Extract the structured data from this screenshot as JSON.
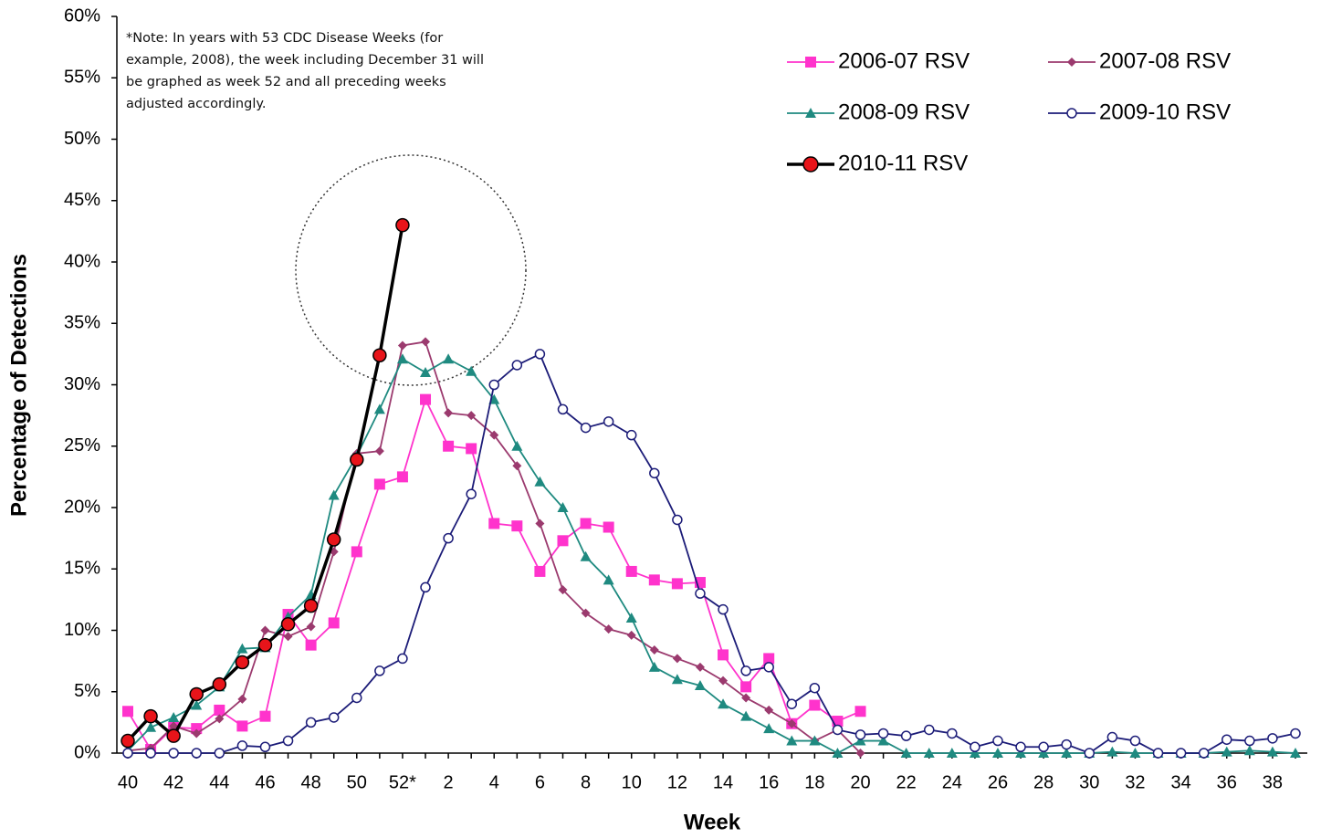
{
  "chart_data": {
    "type": "line",
    "x_label": "Week",
    "y_label": "Percentage of Detections",
    "note": "*Note: In years with 53 CDC Disease Weeks (for example, 2008), the week including December 31 will be graphed as week 52 and all preceding weeks adjusted accordingly.",
    "categories": [
      "40",
      null,
      "42",
      null,
      "44",
      null,
      "46",
      null,
      "48",
      null,
      "50",
      null,
      "52*",
      null,
      "2",
      null,
      "4",
      null,
      "6",
      null,
      "8",
      null,
      "10",
      null,
      "12",
      null,
      "14",
      null,
      "16",
      null,
      "18",
      null,
      "20",
      null,
      "22",
      null,
      "24",
      null,
      "26",
      null,
      "28",
      null,
      "30",
      null,
      "32",
      null,
      "34",
      null,
      "36",
      null,
      "38",
      null
    ],
    "ylim": [
      0,
      60
    ],
    "yticks": [
      {
        "value": 0,
        "label": "0%"
      },
      {
        "value": 5,
        "label": "5%"
      },
      {
        "value": 10,
        "label": "10%"
      },
      {
        "value": 15,
        "label": "15%"
      },
      {
        "value": 20,
        "label": "20%"
      },
      {
        "value": 25,
        "label": "25%"
      },
      {
        "value": 30,
        "label": "30%"
      },
      {
        "value": 35,
        "label": "35%"
      },
      {
        "value": 40,
        "label": "40%"
      },
      {
        "value": 45,
        "label": "45%"
      },
      {
        "value": 50,
        "label": "50%"
      },
      {
        "value": 55,
        "label": "55%"
      },
      {
        "value": 60,
        "label": "60%"
      }
    ],
    "grid": false,
    "series": [
      {
        "name": "2006-07 RSV",
        "color": "#ff33cc",
        "marker": "square",
        "values": [
          3.4,
          0.3,
          2.1,
          2.0,
          3.5,
          2.2,
          3.0,
          11.3,
          8.8,
          10.6,
          16.4,
          21.9,
          22.5,
          28.8,
          25.0,
          24.8,
          18.7,
          18.5,
          14.8,
          17.3,
          18.7,
          18.4,
          14.8,
          14.1,
          13.8,
          13.9,
          8.0,
          5.4,
          7.7,
          2.4,
          3.9,
          2.6,
          3.4,
          null,
          null,
          null,
          null,
          null,
          null,
          null,
          null,
          null,
          null,
          null,
          null,
          null,
          null,
          null,
          null,
          null,
          null,
          null
        ]
      },
      {
        "name": "2007-08 RSV",
        "color": "#9b3a6e",
        "marker": "diamond",
        "values": [
          0.2,
          0.4,
          2.2,
          1.6,
          2.8,
          4.4,
          10.0,
          9.5,
          10.3,
          16.4,
          24.4,
          24.6,
          33.2,
          33.5,
          27.7,
          27.5,
          25.9,
          23.4,
          18.7,
          13.3,
          11.4,
          10.1,
          9.6,
          8.4,
          7.7,
          7.0,
          5.9,
          4.5,
          3.5,
          2.4,
          1.0,
          1.9,
          0,
          null,
          null,
          null,
          null,
          null,
          null,
          null,
          null,
          null,
          null,
          null,
          null,
          null,
          null,
          null,
          null,
          null,
          null,
          null
        ]
      },
      {
        "name": "2008-09 RSV",
        "color": "#1f8a80",
        "marker": "triangle",
        "values": [
          0.2,
          2.1,
          2.9,
          3.9,
          5.4,
          8.5,
          8.6,
          11.1,
          12.9,
          21.0,
          24.2,
          28.0,
          32.1,
          31.0,
          32.1,
          31.1,
          28.8,
          25.0,
          22.1,
          20.0,
          16.0,
          14.1,
          11.0,
          7.0,
          6.0,
          5.5,
          4.0,
          3.0,
          2.0,
          1.0,
          1.0,
          0,
          1.0,
          1.0,
          0,
          0,
          0,
          0,
          0,
          0,
          0,
          0,
          0,
          0.1,
          0,
          0,
          0,
          0,
          0.1,
          0.2,
          0.1,
          0
        ]
      },
      {
        "name": "2009-10 RSV",
        "color": "#1c1c78",
        "marker": "open-circle",
        "values": [
          0,
          0,
          0,
          0,
          0,
          0.6,
          0.5,
          1.0,
          2.5,
          2.9,
          4.5,
          6.7,
          7.7,
          13.5,
          17.5,
          21.1,
          30.0,
          31.6,
          32.5,
          28.0,
          26.5,
          27.0,
          25.9,
          22.8,
          19.0,
          13.0,
          11.7,
          6.7,
          7.0,
          4.0,
          5.3,
          1.9,
          1.5,
          1.6,
          1.4,
          1.9,
          1.6,
          0.5,
          1.0,
          0.5,
          0.5,
          0.7,
          0,
          1.3,
          1.0,
          0,
          0,
          0,
          1.1,
          1.0,
          1.2,
          1.6
        ]
      },
      {
        "name": "2010-11 RSV",
        "color": "#000000",
        "marker": "filled-circle",
        "values": [
          1.0,
          3.0,
          1.4,
          4.8,
          5.6,
          7.4,
          8.8,
          10.5,
          12.0,
          17.4,
          23.9,
          32.4,
          43.0,
          null,
          null,
          null,
          null,
          null,
          null,
          null,
          null,
          null,
          null,
          null,
          null,
          null,
          null,
          null,
          null,
          null,
          null,
          null,
          null,
          null,
          null,
          null,
          null,
          null,
          null,
          null,
          null,
          null,
          null,
          null,
          null,
          null,
          null,
          null,
          null,
          null,
          null,
          null
        ]
      }
    ]
  }
}
